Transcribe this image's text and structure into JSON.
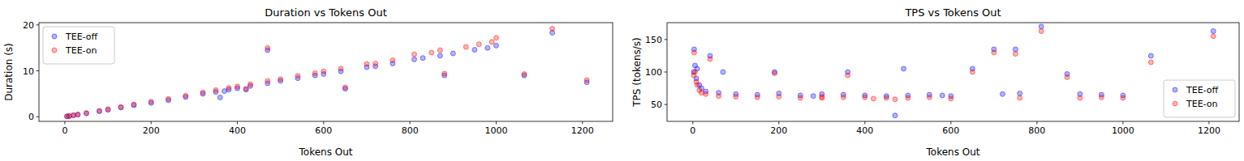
{
  "chart_data": [
    {
      "type": "scatter",
      "title": "Duration vs Tokens Out",
      "x_label": "Tokens Out",
      "y_label": "Duration (s)",
      "xlim": [
        -60,
        1270
      ],
      "ylim": [
        -1,
        20.5
      ],
      "xticks": [
        0,
        200,
        400,
        600,
        800,
        1000,
        1200
      ],
      "yticks": [
        0,
        10,
        20
      ],
      "legend": "upper left",
      "grid": false,
      "series": [
        {
          "name": "TEE-off",
          "color": "#0000ff",
          "marker": "circle",
          "x": [
            5,
            10,
            20,
            30,
            50,
            80,
            100,
            130,
            160,
            200,
            240,
            280,
            320,
            350,
            380,
            400,
            430,
            470,
            470,
            500,
            540,
            580,
            600,
            640,
            650,
            700,
            720,
            760,
            810,
            830,
            870,
            880,
            900,
            950,
            980,
            1000,
            1065,
            1130,
            1210,
            360,
            420,
            370
          ],
          "values": [
            0.08,
            0.15,
            0.3,
            0.45,
            0.75,
            1.2,
            1.5,
            2.0,
            2.5,
            3.0,
            3.6,
            4.3,
            5.0,
            5.4,
            5.9,
            6.2,
            6.7,
            7.3,
            14.5,
            7.8,
            8.4,
            9.0,
            9.3,
            9.9,
            6.1,
            10.8,
            11.0,
            11.6,
            12.5,
            12.8,
            13.3,
            9.0,
            13.8,
            14.6,
            15.0,
            15.5,
            9.0,
            18.3,
            7.5,
            4.2,
            5.9,
            5.6
          ]
        },
        {
          "name": "TEE-on",
          "color": "#ff0000",
          "marker": "circle",
          "x": [
            5,
            10,
            20,
            30,
            50,
            80,
            100,
            130,
            160,
            200,
            240,
            280,
            320,
            350,
            380,
            400,
            430,
            470,
            470,
            500,
            540,
            580,
            600,
            640,
            700,
            720,
            760,
            810,
            850,
            870,
            880,
            930,
            960,
            990,
            1000,
            1065,
            1130,
            1210,
            420,
            650
          ],
          "values": [
            0.09,
            0.17,
            0.33,
            0.5,
            0.82,
            1.3,
            1.65,
            2.15,
            2.7,
            3.3,
            3.9,
            4.6,
            5.3,
            5.8,
            6.3,
            6.6,
            7.1,
            7.8,
            15.0,
            8.2,
            8.9,
            9.5,
            9.9,
            10.5,
            11.5,
            11.6,
            12.3,
            13.6,
            14.0,
            14.5,
            9.4,
            15.2,
            15.8,
            16.3,
            17.2,
            9.3,
            19.2,
            8.0,
            6.1,
            6.4
          ]
        }
      ]
    },
    {
      "type": "scatter",
      "title": "TPS vs Tokens Out",
      "x_label": "Tokens Out",
      "y_label": "TPS (tokens/s)",
      "xlim": [
        -60,
        1270
      ],
      "ylim": [
        24,
        176
      ],
      "xticks": [
        0,
        200,
        400,
        600,
        800,
        1000,
        1200
      ],
      "yticks": [
        50,
        100,
        150
      ],
      "legend": "lower right",
      "grid": false,
      "series": [
        {
          "name": "TEE-off",
          "color": "#0000ff",
          "marker": "circle",
          "x": [
            2,
            3,
            5,
            8,
            10,
            15,
            20,
            30,
            40,
            60,
            70,
            100,
            150,
            190,
            200,
            250,
            300,
            350,
            360,
            400,
            450,
            470,
            490,
            500,
            550,
            600,
            650,
            700,
            720,
            750,
            760,
            810,
            870,
            900,
            950,
            1000,
            1065,
            1210,
            580,
            280
          ],
          "values": [
            100,
            135,
            110,
            90,
            105,
            80,
            75,
            70,
            125,
            68,
            100,
            66,
            65,
            100,
            67,
            64,
            66,
            65,
            100,
            64,
            63,
            33,
            105,
            64,
            65,
            63,
            105,
            135,
            66,
            135,
            67,
            170,
            97,
            66,
            65,
            64,
            125,
            163,
            64,
            63
          ]
        },
        {
          "name": "TEE-on",
          "color": "#ff0000",
          "marker": "circle",
          "x": [
            2,
            3,
            5,
            8,
            10,
            15,
            20,
            30,
            40,
            60,
            100,
            150,
            190,
            200,
            250,
            300,
            350,
            360,
            400,
            450,
            470,
            500,
            550,
            600,
            650,
            700,
            750,
            760,
            810,
            870,
            900,
            950,
            1000,
            1065,
            1210,
            300,
            420
          ],
          "values": [
            95,
            130,
            100,
            85,
            80,
            72,
            68,
            66,
            120,
            63,
            62,
            61,
            98,
            62,
            60,
            62,
            61,
            95,
            61,
            60,
            58,
            60,
            61,
            59,
            100,
            130,
            128,
            60,
            163,
            92,
            60,
            61,
            60,
            115,
            155,
            60,
            59
          ]
        }
      ]
    }
  ]
}
